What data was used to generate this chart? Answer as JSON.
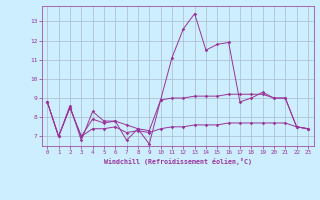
{
  "x": [
    0,
    1,
    2,
    3,
    4,
    5,
    6,
    7,
    8,
    9,
    10,
    11,
    12,
    13,
    14,
    15,
    16,
    17,
    18,
    19,
    20,
    21,
    22,
    23
  ],
  "line1": [
    8.8,
    7.0,
    8.6,
    6.8,
    8.3,
    7.8,
    7.8,
    6.8,
    7.4,
    6.6,
    8.9,
    11.1,
    12.6,
    13.4,
    11.5,
    11.8,
    11.9,
    8.8,
    9.0,
    9.3,
    9.0,
    9.0,
    7.5,
    7.4
  ],
  "line2": [
    8.8,
    7.0,
    8.5,
    7.0,
    7.9,
    7.7,
    7.8,
    7.6,
    7.4,
    7.3,
    8.9,
    9.0,
    9.0,
    9.1,
    9.1,
    9.1,
    9.2,
    9.2,
    9.2,
    9.2,
    9.0,
    9.0,
    7.5,
    7.4
  ],
  "line3": [
    8.8,
    7.0,
    8.5,
    7.0,
    7.4,
    7.4,
    7.5,
    7.2,
    7.3,
    7.2,
    7.4,
    7.5,
    7.5,
    7.6,
    7.6,
    7.6,
    7.7,
    7.7,
    7.7,
    7.7,
    7.7,
    7.7,
    7.5,
    7.4
  ],
  "line_color": "#993399",
  "bg_color": "#cceeff",
  "grid_color": "#aabbcc",
  "ylabel_values": [
    7,
    8,
    9,
    10,
    11,
    12,
    13
  ],
  "ylim": [
    6.5,
    13.8
  ],
  "xlim": [
    -0.5,
    23.5
  ],
  "xlabel": "Windchill (Refroidissement éolien,°C)"
}
